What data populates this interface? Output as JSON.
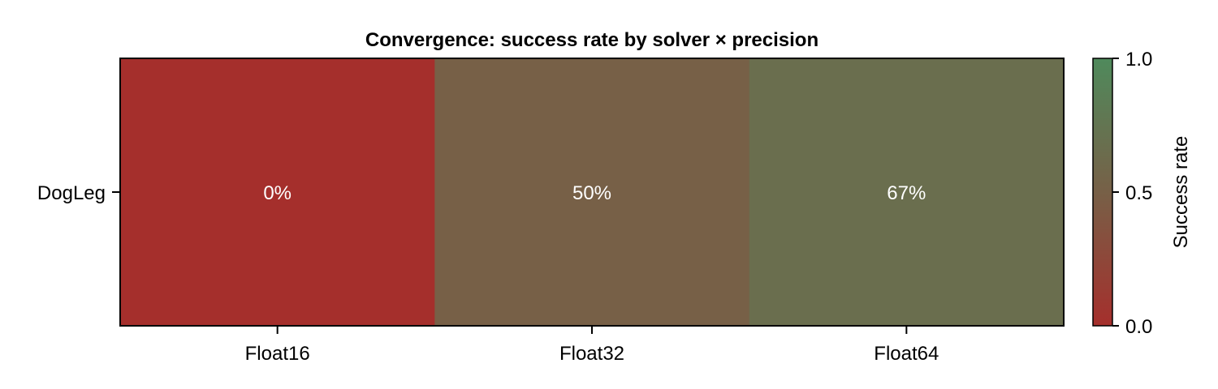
{
  "chart_data": {
    "type": "heatmap",
    "title": "Convergence: success rate by solver × precision",
    "x_categories": [
      "Float16",
      "Float32",
      "Float64"
    ],
    "y_categories": [
      "DogLeg"
    ],
    "values": [
      [
        0.0,
        0.5,
        0.667
      ]
    ],
    "cell_labels": [
      [
        "0%",
        "50%",
        "67%"
      ]
    ],
    "colorbar": {
      "label": "Success rate",
      "range": [
        0.0,
        1.0
      ],
      "ticks": [
        "0.0",
        "0.5",
        "1.0"
      ],
      "colors": [
        "#a52f2c",
        "#776047",
        "#4f8a5c"
      ]
    }
  }
}
